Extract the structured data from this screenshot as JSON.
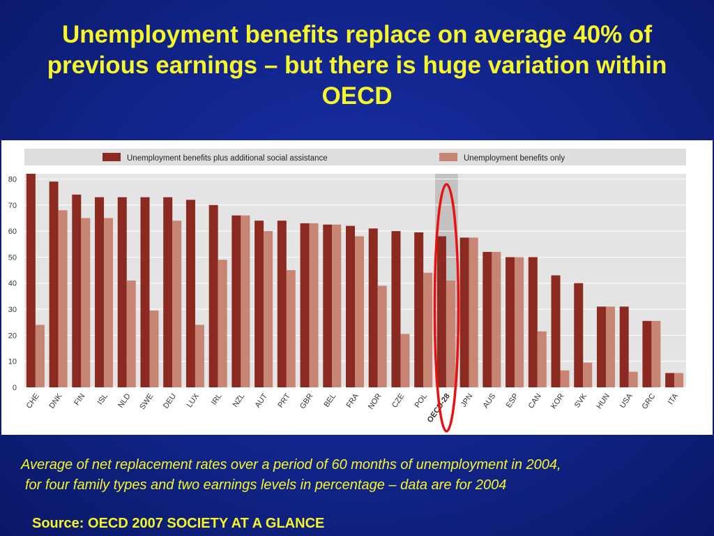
{
  "slide": {
    "title": "Unemployment benefits replace on average 40% of previous earnings – but there is huge variation within OECD",
    "caption_line1": "Average of net replacement rates over a period of 60 months of unemployment in 2004,",
    "caption_line2": "for four family types and two earnings levels in percentage – data are for 2004",
    "source": "Source: OECD 2007 SOCIETY AT A GLANCE"
  },
  "colors": {
    "series_dark": "#8b2a20",
    "series_light": "#c98574",
    "highlight_column": "#c2c2c2",
    "annotation_ellipse": "#e81010"
  },
  "chart_data": {
    "type": "bar",
    "title": "",
    "xlabel": "",
    "ylabel": "",
    "ylim": [
      0,
      82
    ],
    "yticks": [
      0,
      10,
      20,
      30,
      40,
      50,
      60,
      70,
      80
    ],
    "grid": true,
    "legend_position": "top",
    "highlight_category": "OECD-28",
    "annotation": "red ellipse around OECD-28",
    "categories": [
      "CHE",
      "DNK",
      "FIN",
      "ISL",
      "NLD",
      "SWE",
      "DEU",
      "LUX",
      "IRL",
      "NZL",
      "AUT",
      "PRT",
      "GBR",
      "BEL",
      "FRA",
      "NOR",
      "CZE",
      "POL",
      "OECD-28",
      "JPN",
      "AUS",
      "ESP",
      "CAN",
      "KOR",
      "SVK",
      "HUN",
      "USA",
      "GRC",
      "ITA"
    ],
    "series": [
      {
        "name": "Unemployment benefits plus additional social assistance",
        "values": [
          82,
          79,
          74,
          73,
          73,
          73,
          73,
          72,
          70,
          66,
          64,
          64,
          63,
          62.5,
          62,
          61,
          60,
          59.5,
          58,
          57.5,
          52,
          50,
          50,
          43,
          40,
          31,
          31,
          25.5,
          5.5
        ]
      },
      {
        "name": "Unemployment benefits only",
        "values": [
          24,
          68,
          65,
          65,
          41,
          29.5,
          64,
          24,
          49,
          66,
          60,
          45,
          63,
          62.5,
          58,
          39,
          20.5,
          44,
          41,
          57.5,
          52,
          50,
          21.5,
          6.5,
          9.5,
          31,
          6,
          25.5,
          5.5
        ]
      }
    ]
  }
}
